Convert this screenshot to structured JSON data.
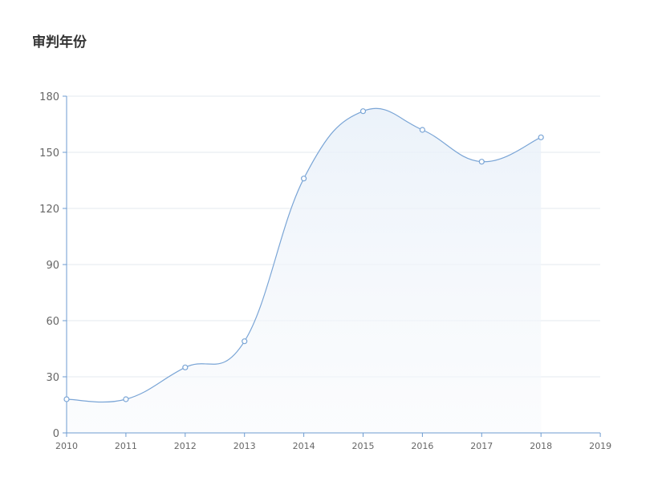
{
  "title": "审判年份",
  "chart_data": {
    "type": "area",
    "title": "审判年份",
    "xlabel": "",
    "ylabel": "",
    "x": [
      "2010",
      "2011",
      "2012",
      "2013",
      "2014",
      "2015",
      "2016",
      "2017",
      "2018"
    ],
    "x_ticks": [
      "2010",
      "2011",
      "2012",
      "2013",
      "2014",
      "2015",
      "2016",
      "2017",
      "2018",
      "2019"
    ],
    "values": [
      18,
      18,
      35,
      49,
      136,
      172,
      162,
      145,
      158
    ],
    "y_ticks": [
      "0",
      "30",
      "60",
      "90",
      "120",
      "150",
      "180"
    ],
    "ylim": [
      0,
      180
    ],
    "grid": true,
    "smooth": true,
    "colors": {
      "line": "#7aa5d6",
      "area": "#eaf1f9",
      "axis": "#6d9bd0",
      "grid": "#e3e8ef",
      "marker_fill": "#ffffff"
    }
  }
}
